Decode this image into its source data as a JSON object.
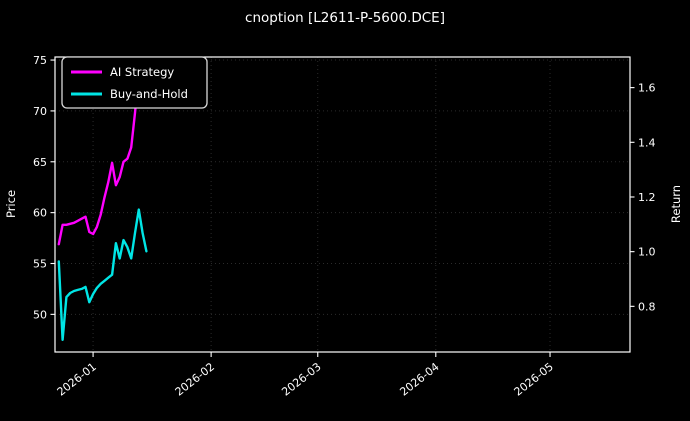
{
  "title": "cnoption [L2611-P-5600.DCE]",
  "colors": {
    "background": "#000000",
    "text": "#ffffff",
    "grid": "#2b2b2b",
    "spine": "#ffffff",
    "legend_border": "#d9d9d9",
    "ai_strategy": "#ff00ff",
    "buy_and_hold": "#00e5e5"
  },
  "chart_data": {
    "type": "line",
    "title": "cnoption [L2611-P-5600.DCE]",
    "xlabel": "",
    "ylabel_left": "Price",
    "ylabel_right": "Return",
    "grid": "dotted",
    "legend_position": "upper-left",
    "x_range": [
      "2025-12-22",
      "2026-05-22"
    ],
    "left_ylim": [
      46.3,
      75.3
    ],
    "right_ylim": [
      0.633,
      1.712
    ],
    "x_tick_labels": [
      "2026-01",
      "2026-02",
      "2026-03",
      "2026-04",
      "2026-05"
    ],
    "left_ytick_labels": [
      "50",
      "55",
      "60",
      "65",
      "70",
      "75"
    ],
    "right_ytick_labels": [
      "0.8",
      "1.0",
      "1.2",
      "1.4",
      "1.6"
    ],
    "x": [
      "2025-12-23",
      "2025-12-24",
      "2025-12-25",
      "2025-12-26",
      "2025-12-27",
      "2025-12-28",
      "2025-12-29",
      "2025-12-30",
      "2025-12-31",
      "2026-01-01",
      "2026-01-02",
      "2026-01-03",
      "2026-01-04",
      "2026-01-05",
      "2026-01-06",
      "2026-01-07",
      "2026-01-08",
      "2026-01-09",
      "2026-01-10",
      "2026-01-11",
      "2026-01-12",
      "2026-01-13",
      "2026-01-14",
      "2026-01-15"
    ],
    "series": [
      {
        "name": "AI Strategy",
        "color": "#ff00ff",
        "axis": "left",
        "values": [
          56.9,
          58.8,
          58.8,
          58.9,
          59.0,
          59.2,
          59.4,
          59.6,
          58.1,
          57.9,
          58.6,
          59.8,
          61.5,
          63.0,
          64.9,
          62.7,
          63.5,
          65.0,
          65.3,
          66.4,
          69.8,
          73.8,
          72.6,
          71.2
        ]
      },
      {
        "name": "Buy-and-Hold",
        "color": "#00e5e5",
        "axis": "left",
        "values": [
          55.2,
          47.5,
          51.7,
          52.1,
          52.3,
          52.4,
          52.5,
          52.7,
          51.2,
          52.0,
          52.6,
          53.0,
          53.3,
          53.6,
          53.9,
          57.0,
          55.5,
          57.3,
          56.6,
          55.5,
          58.0,
          60.3,
          58.0,
          56.2
        ]
      }
    ]
  }
}
